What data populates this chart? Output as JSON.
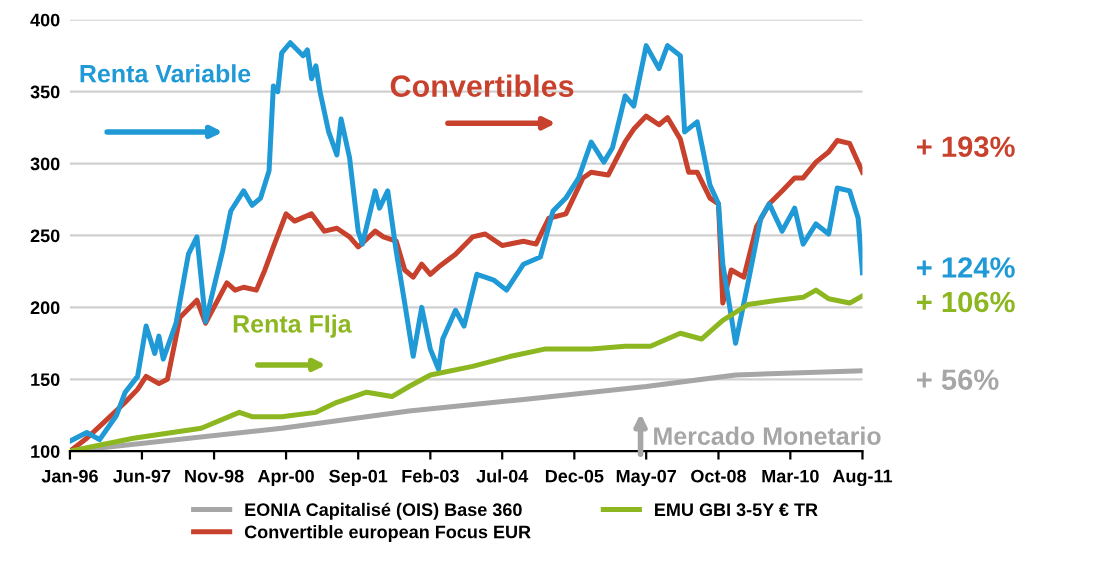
{
  "chart_data": {
    "type": "line",
    "ylim": [
      100,
      400
    ],
    "yticks": [
      100,
      150,
      200,
      250,
      300,
      350,
      400
    ],
    "grid": "y",
    "legend": "bottom",
    "xlim": [
      "1996-01",
      "2011-08"
    ],
    "xticks": [
      {
        "value": "1996-01",
        "label": "Jan-96"
      },
      {
        "value": "1997-06",
        "label": "Jun-97"
      },
      {
        "value": "1998-11",
        "label": "Nov-98"
      },
      {
        "value": "2000-04",
        "label": "Apr-00"
      },
      {
        "value": "2001-09",
        "label": "Sep-01"
      },
      {
        "value": "2003-02",
        "label": "Feb-03"
      },
      {
        "value": "2004-07",
        "label": "Jul-04"
      },
      {
        "value": "2005-12",
        "label": "Dec-05"
      },
      {
        "value": "2007-05",
        "label": "May-07"
      },
      {
        "value": "2008-10",
        "label": "Oct-08"
      },
      {
        "value": "2010-03",
        "label": "Mar-10"
      },
      {
        "value": "2011-08",
        "label": "Aug-11"
      }
    ],
    "annotations": [
      "Renta Variable",
      "Convertibles",
      "Renta FIja",
      "Mercado Monetario",
      "+ 193%",
      "+ 124%",
      "+ 106%",
      "+ 56%"
    ],
    "series": [
      {
        "name": "EONIA Capitalisé (OIS) Base 360",
        "color": "#a6a6a6",
        "x": [
          "1996-01",
          "2000-03",
          "2002-09",
          "2004-12",
          "2007-05",
          "2009-02",
          "2011-08"
        ],
        "values": [
          100,
          116,
          128,
          136,
          145,
          153,
          156
        ]
      },
      {
        "name": "Convertible european Focus EUR",
        "color": "#c8412d",
        "x": [
          "1996-01",
          "1996-05",
          "1996-09",
          "1997-02",
          "1997-05",
          "1997-07",
          "1997-10",
          "1997-12",
          "1998-03",
          "1998-07",
          "1998-09",
          "1999-02",
          "1999-04",
          "1999-06",
          "1999-09",
          "1999-11",
          "2000-01",
          "2000-04",
          "2000-06",
          "2000-10",
          "2001-01",
          "2001-04",
          "2001-07",
          "2001-09",
          "2002-01",
          "2002-03",
          "2002-06",
          "2002-08",
          "2002-10",
          "2002-12",
          "2003-02",
          "2003-04",
          "2003-08",
          "2003-12",
          "2004-03",
          "2004-07",
          "2004-12",
          "2005-03",
          "2005-06",
          "2005-10",
          "2006-02",
          "2006-04",
          "2006-08",
          "2006-12",
          "2007-02",
          "2007-05",
          "2007-08",
          "2007-10",
          "2008-01",
          "2008-03",
          "2008-05",
          "2008-08",
          "2008-10",
          "2008-11",
          "2009-01",
          "2009-04",
          "2009-07",
          "2009-10",
          "2010-01",
          "2010-04",
          "2010-06",
          "2010-09",
          "2010-12",
          "2011-02",
          "2011-05",
          "2011-08"
        ],
        "values": [
          100,
          109,
          120,
          134,
          143,
          152,
          147,
          150,
          193,
          205,
          189,
          217,
          212,
          214,
          212,
          226,
          242,
          265,
          260,
          265,
          253,
          255,
          249,
          242,
          253,
          249,
          246,
          226,
          221,
          230,
          223,
          228,
          237,
          249,
          251,
          243,
          246,
          244,
          262,
          265,
          290,
          294,
          292,
          315,
          324,
          333,
          327,
          332,
          317,
          294,
          294,
          276,
          272,
          203,
          226,
          221,
          256,
          272,
          281,
          290,
          290,
          301,
          308,
          316,
          314,
          294
        ]
      },
      {
        "color": "#1f9ad6",
        "x": [
          "1996-01",
          "1996-05",
          "1996-08",
          "1996-12",
          "1997-02",
          "1997-05",
          "1997-07",
          "1997-09",
          "1997-10",
          "1997-11",
          "1998-02",
          "1998-04",
          "1998-05",
          "1998-07",
          "1998-09",
          "1999-01",
          "1999-03",
          "1999-06",
          "1999-08",
          "1999-10",
          "1999-12",
          "2000-01",
          "2000-02",
          "2000-03",
          "2000-05",
          "2000-08",
          "2000-09",
          "2000-10",
          "2000-11",
          "2000-12",
          "2001-02",
          "2001-04",
          "2001-05",
          "2001-07",
          "2001-09",
          "2001-10",
          "2002-01",
          "2002-02",
          "2002-04",
          "2002-06",
          "2002-08",
          "2002-10",
          "2002-12",
          "2003-02",
          "2003-04",
          "2003-05",
          "2003-08",
          "2003-10",
          "2004-01",
          "2004-03",
          "2004-05",
          "2004-08",
          "2004-12",
          "2005-04",
          "2005-07",
          "2005-10",
          "2006-01",
          "2006-04",
          "2006-07",
          "2006-09",
          "2006-12",
          "2007-02",
          "2007-05",
          "2007-08",
          "2007-10",
          "2008-01",
          "2008-02",
          "2008-05",
          "2008-08",
          "2008-10",
          "2008-11",
          "2009-02",
          "2009-05",
          "2009-08",
          "2009-10",
          "2010-01",
          "2010-04",
          "2010-06",
          "2010-09",
          "2010-12",
          "2011-02",
          "2011-05",
          "2011-07",
          "2011-08"
        ],
        "values": [
          107,
          113,
          108,
          125,
          141,
          152,
          187,
          168,
          180,
          164,
          189,
          221,
          237,
          249,
          190,
          239,
          267,
          281,
          271,
          276,
          295,
          354,
          350,
          377,
          384,
          375,
          379,
          359,
          368,
          350,
          322,
          306,
          331,
          304,
          253,
          244,
          281,
          269,
          281,
          239,
          203,
          166,
          200,
          171,
          157,
          178,
          198,
          187,
          223,
          221,
          219,
          212,
          230,
          235,
          267,
          276,
          290,
          315,
          301,
          311,
          347,
          340,
          382,
          366,
          382,
          375,
          322,
          329,
          285,
          272,
          230,
          175,
          217,
          262,
          272,
          253,
          269,
          244,
          258,
          251,
          283,
          281,
          262,
          224
        ]
      },
      {
        "name": "EMU GBI 3-5Y € TR",
        "color": "#8db720",
        "x": [
          "1996-01",
          "1997-04",
          "1998-08",
          "1999-05",
          "1999-08",
          "2000-03",
          "2000-11",
          "2001-04",
          "2001-11",
          "2002-05",
          "2002-09",
          "2003-02",
          "2003-12",
          "2004-09",
          "2005-05",
          "2006-04",
          "2006-12",
          "2007-06",
          "2008-01",
          "2008-06",
          "2008-11",
          "2009-05",
          "2009-12",
          "2010-06",
          "2010-09",
          "2010-12",
          "2011-05",
          "2011-08"
        ],
        "values": [
          100,
          109,
          116,
          127,
          124,
          124,
          127,
          134,
          141,
          138,
          145,
          153,
          159,
          166,
          171,
          171,
          173,
          173,
          182,
          178,
          191,
          202,
          205,
          207,
          212,
          206,
          203,
          208
        ]
      }
    ]
  }
}
